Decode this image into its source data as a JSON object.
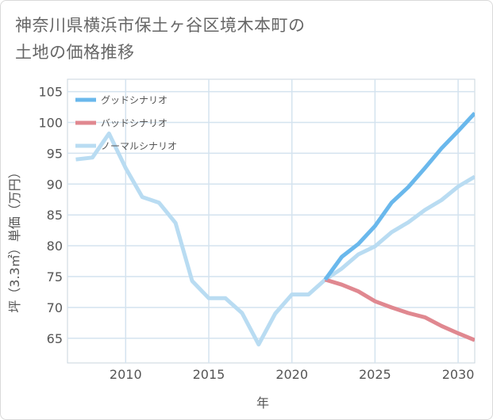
{
  "title": {
    "line1": "神奈川県横浜市保土ヶ谷区境木本町の",
    "line2": "土地の価格推移"
  },
  "chart_data": {
    "type": "line",
    "title": "神奈川県横浜市保土ヶ谷区境木本町の土地の価格推移",
    "xlabel": "年",
    "ylabel": "坪（3.3㎡）単価（万円）",
    "xlim": [
      2006.5,
      2031
    ],
    "ylim": [
      61,
      107
    ],
    "x_ticks": [
      2010,
      2015,
      2020,
      2025,
      2030
    ],
    "y_ticks": [
      65,
      70,
      75,
      80,
      85,
      90,
      95,
      100,
      105
    ],
    "legend_position": "top-left",
    "series": [
      {
        "name": "グッドシナリオ",
        "color": "#6ab8ec",
        "points": [
          [
            2022,
            74.5
          ],
          [
            2023,
            78.2
          ],
          [
            2024,
            80.3
          ],
          [
            2025,
            83.2
          ],
          [
            2026,
            87.0
          ],
          [
            2027,
            89.5
          ],
          [
            2028,
            92.6
          ],
          [
            2029,
            95.8
          ],
          [
            2030,
            98.6
          ],
          [
            2031,
            101.5
          ]
        ]
      },
      {
        "name": "バッドシナリオ",
        "color": "#e08890",
        "points": [
          [
            2022,
            74.5
          ],
          [
            2023,
            73.7
          ],
          [
            2024,
            72.6
          ],
          [
            2025,
            71.0
          ],
          [
            2026,
            70.0
          ],
          [
            2027,
            69.1
          ],
          [
            2028,
            68.4
          ],
          [
            2029,
            67.0
          ],
          [
            2030,
            65.8
          ],
          [
            2031,
            64.7
          ]
        ]
      },
      {
        "name": "ノーマルシナリオ",
        "color": "#b9dcf2",
        "points": [
          [
            2007,
            94.0
          ],
          [
            2008,
            94.3
          ],
          [
            2009,
            98.2
          ],
          [
            2010,
            92.6
          ],
          [
            2011,
            87.9
          ],
          [
            2012,
            87.0
          ],
          [
            2013,
            83.7
          ],
          [
            2014,
            74.3
          ],
          [
            2015,
            71.5
          ],
          [
            2016,
            71.5
          ],
          [
            2017,
            69.1
          ],
          [
            2018,
            64.0
          ],
          [
            2019,
            69.0
          ],
          [
            2020,
            72.1
          ],
          [
            2021,
            72.1
          ],
          [
            2022,
            74.5
          ],
          [
            2023,
            76.3
          ],
          [
            2024,
            78.6
          ],
          [
            2025,
            79.9
          ],
          [
            2026,
            82.2
          ],
          [
            2027,
            83.8
          ],
          [
            2028,
            85.8
          ],
          [
            2029,
            87.4
          ],
          [
            2030,
            89.6
          ],
          [
            2031,
            91.2
          ]
        ]
      }
    ]
  }
}
